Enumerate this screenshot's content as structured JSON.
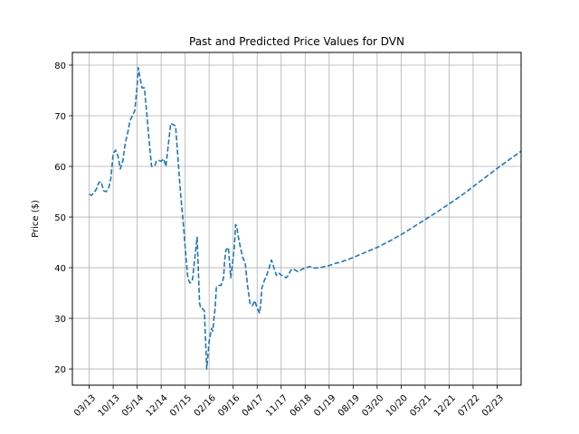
{
  "chart_data": {
    "type": "line",
    "title": "Past and Predicted Price Values for DVN",
    "xlabel": "",
    "ylabel": "Price ($)",
    "x_tick_labels": [
      "03/13",
      "10/13",
      "05/14",
      "12/14",
      "07/15",
      "02/16",
      "09/16",
      "04/17",
      "11/17",
      "06/18",
      "01/19",
      "08/19",
      "03/20",
      "10/20",
      "05/21",
      "12/21",
      "07/22",
      "02/23"
    ],
    "y_ticks": [
      20,
      30,
      40,
      50,
      60,
      70,
      80
    ],
    "xlim": [
      -0.7,
      18.0
    ],
    "ylim": [
      16.8,
      82.5
    ],
    "grid": true,
    "line_style": "dashed",
    "line_color": "#1f77b4",
    "series": [
      {
        "x": [
          0,
          0.1,
          0.2,
          0.3,
          0.4,
          0.5,
          0.6,
          0.7,
          0.8,
          0.9,
          1.0,
          1.1,
          1.2,
          1.3,
          1.4,
          1.5,
          1.6,
          1.7,
          1.8,
          1.9,
          2.0,
          2.05,
          2.1,
          2.2,
          2.3,
          2.4,
          2.5,
          2.6,
          2.7,
          2.75,
          2.8,
          2.9,
          3.0,
          3.1,
          3.2,
          3.4,
          3.6,
          3.8,
          3.9,
          4.0,
          4.1,
          4.15,
          4.2,
          4.3,
          4.5,
          4.6,
          4.65,
          4.7,
          4.8,
          4.9,
          5.0,
          5.1,
          5.15,
          5.2,
          5.25,
          5.3,
          5.4,
          5.5,
          5.6,
          5.65,
          5.7,
          5.8,
          5.9,
          6.0,
          6.05,
          6.1,
          6.15,
          6.2,
          6.3,
          6.4,
          6.5,
          6.6,
          6.7,
          6.8,
          6.9,
          7.0,
          7.05,
          7.1,
          7.15,
          7.2,
          7.3,
          7.4,
          7.5,
          7.6,
          7.7,
          7.8,
          7.9,
          8.0,
          8.05,
          8.1,
          8.2,
          8.3,
          8.4,
          8.5,
          8.6,
          8.7,
          8.8,
          9.0,
          9.2,
          9.4,
          9.6,
          9.8,
          10.0,
          10.1,
          10.2,
          10.4,
          10.6,
          11.0,
          11.5,
          12.0,
          12.5,
          13.0,
          13.5,
          14.0,
          14.5,
          15.0,
          15.5,
          16.0,
          16.5,
          17.0,
          17.5,
          18.0
        ],
        "y": [
          54.5,
          54.3,
          54.8,
          55.5,
          56.8,
          57.0,
          55.2,
          55.0,
          55.5,
          57.5,
          62.5,
          63.2,
          62.0,
          59.5,
          61.0,
          64.5,
          66.5,
          69.0,
          70.0,
          71.0,
          76.0,
          79.5,
          78.0,
          75.5,
          75.5,
          70.5,
          65.0,
          60.0,
          60.0,
          60.3,
          61.0,
          61.2,
          61.0,
          61.5,
          60.0,
          68.5,
          68.0,
          55.0,
          50.0,
          44.0,
          38.5,
          37.5,
          37.0,
          37.5,
          46.0,
          33.0,
          32.0,
          32.0,
          31.5,
          20.0,
          25.5,
          28.0,
          27.5,
          30.0,
          32.0,
          36.0,
          36.5,
          36.5,
          38.0,
          41.5,
          43.5,
          44.0,
          38.0,
          42.0,
          44.0,
          48.5,
          48.2,
          46.5,
          44.0,
          42.0,
          41.0,
          36.5,
          33.0,
          32.5,
          33.5,
          32.0,
          31.5,
          31.0,
          33.0,
          36.0,
          37.5,
          38.5,
          40.0,
          41.5,
          40.0,
          38.5,
          39.0,
          38.5,
          38.5,
          38.3,
          38.0,
          38.5,
          39.5,
          39.8,
          39.5,
          39.2,
          39.5,
          40.0,
          40.2,
          39.9,
          40.0,
          40.2,
          40.4,
          40.6,
          40.8,
          41.0,
          41.3,
          42.0,
          43.0,
          44.0,
          45.2,
          46.5,
          48.0,
          49.5,
          51.0,
          52.6,
          54.2,
          56.0,
          57.8,
          59.6,
          61.3,
          63.0
        ]
      }
    ]
  }
}
